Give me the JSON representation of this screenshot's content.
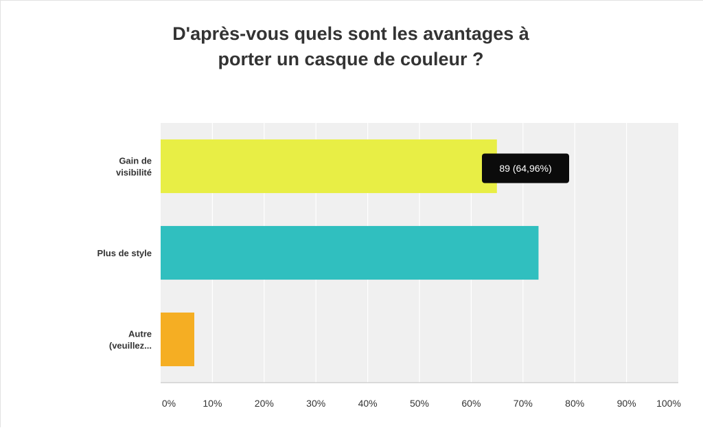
{
  "chart_data": {
    "type": "bar",
    "orientation": "horizontal",
    "title": "D'après-vous quels sont les avantages à porter un casque de couleur ?",
    "title_lines": [
      "D'après-vous quels sont les avantages à",
      "porter un casque de couleur ?"
    ],
    "categories": [
      {
        "lines": [
          "Gain de",
          "visibilité"
        ]
      },
      {
        "lines": [
          "Plus de style"
        ]
      },
      {
        "lines": [
          "Autre",
          "(veuillez..."
        ]
      }
    ],
    "values": [
      64.96,
      73,
      6.5
    ],
    "colors": [
      "#e8ee45",
      "#30bfbf",
      "#f5ae23"
    ],
    "xlim": [
      0,
      100
    ],
    "xticks": [
      "0%",
      "10%",
      "20%",
      "30%",
      "40%",
      "50%",
      "60%",
      "70%",
      "80%",
      "90%",
      "100%"
    ],
    "grid": true,
    "plot_background": "#f0f0f0",
    "tooltip": {
      "category_index": 0,
      "text": "89 (64,96%)"
    }
  }
}
